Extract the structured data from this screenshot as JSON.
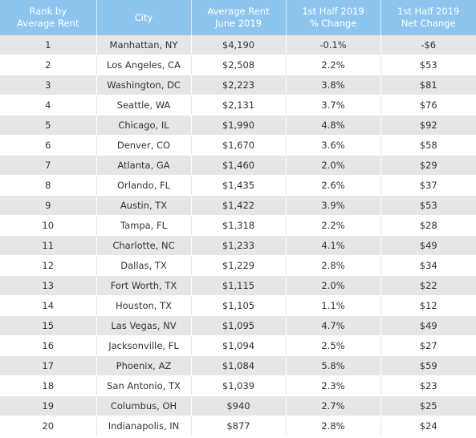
{
  "table": {
    "headers": [
      "Rank by\nAverage Rent",
      "City",
      "Average Rent\nJune 2019",
      "1st Half 2019\n% Change",
      "1st Half 2019\nNet Change"
    ],
    "rows": [
      [
        "1",
        "Manhattan, NY",
        "$4,190",
        "-0.1%",
        "-$6"
      ],
      [
        "2",
        "Los Angeles, CA",
        "$2,508",
        "2.2%",
        "$53"
      ],
      [
        "3",
        "Washington, DC",
        "$2,223",
        "3.8%",
        "$81"
      ],
      [
        "4",
        "Seattle, WA",
        "$2,131",
        "3.7%",
        "$76"
      ],
      [
        "5",
        "Chicago, IL",
        "$1,990",
        "4.8%",
        "$92"
      ],
      [
        "6",
        "Denver, CO",
        "$1,670",
        "3.6%",
        "$58"
      ],
      [
        "7",
        "Atlanta, GA",
        "$1,460",
        "2.0%",
        "$29"
      ],
      [
        "8",
        "Orlando, FL",
        "$1,435",
        "2.6%",
        "$37"
      ],
      [
        "9",
        "Austin, TX",
        "$1,422",
        "3.9%",
        "$53"
      ],
      [
        "10",
        "Tampa, FL",
        "$1,318",
        "2.2%",
        "$28"
      ],
      [
        "11",
        "Charlotte, NC",
        "$1,233",
        "4.1%",
        "$49"
      ],
      [
        "12",
        "Dallas, TX",
        "$1,229",
        "2.8%",
        "$34"
      ],
      [
        "13",
        "Fort Worth, TX",
        "$1,115",
        "2.0%",
        "$22"
      ],
      [
        "14",
        "Houston, TX",
        "$1,105",
        "1.1%",
        "$12"
      ],
      [
        "15",
        "Las Vegas, NV",
        "$1,095",
        "4.7%",
        "$49"
      ],
      [
        "16",
        "Jacksonville, FL",
        "$1,094",
        "2.5%",
        "$27"
      ],
      [
        "17",
        "Phoenix, AZ",
        "$1,084",
        "5.8%",
        "$59"
      ],
      [
        "18",
        "San Antonio, TX",
        "$1,039",
        "2.3%",
        "$23"
      ],
      [
        "19",
        "Columbus, OH",
        "$940",
        "2.7%",
        "$25"
      ],
      [
        "20",
        "Indianapolis, IN",
        "$877",
        "2.8%",
        "$24"
      ]
    ]
  },
  "colors": {
    "header_bg": "#8ec5ee",
    "header_text": "#ffffff",
    "stripe_bg": "#e6e6e6",
    "body_text": "#333333"
  }
}
